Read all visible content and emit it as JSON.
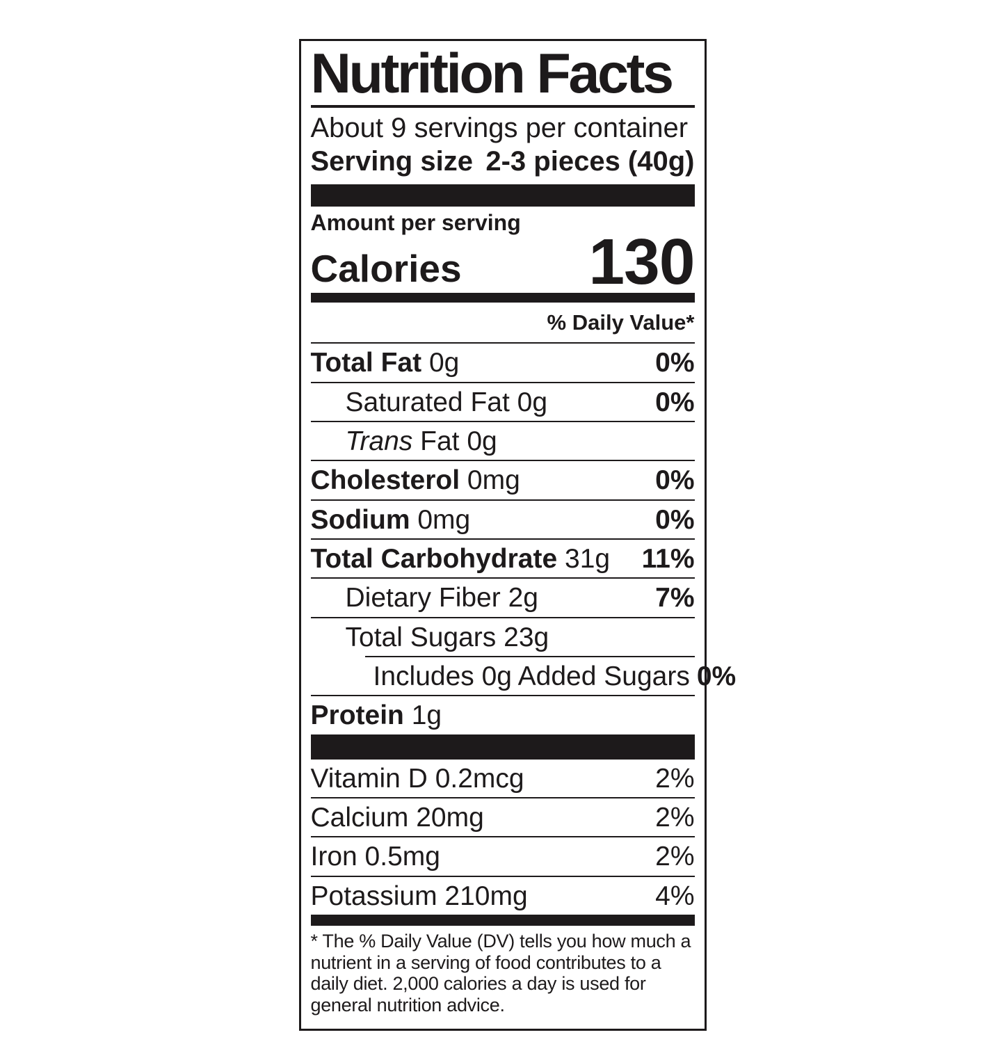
{
  "label": {
    "title": "Nutrition Facts",
    "servings_per_container": "About 9 servings per container",
    "serving_size_label": "Serving size",
    "serving_size_value": "2-3 pieces (40g)",
    "amount_per_serving": "Amount per serving",
    "calories_label": "Calories",
    "calories_value": "130",
    "daily_value_header": "% Daily Value*",
    "nutrients": [
      {
        "name": "Total Fat",
        "amount": "0g",
        "dv": "0%",
        "bold": true,
        "indent": 0
      },
      {
        "name": "Saturated Fat",
        "amount": "0g",
        "dv": "0%",
        "bold": false,
        "indent": 1
      },
      {
        "name_italic": "Trans",
        "name": "Fat",
        "amount": "0g",
        "dv": "",
        "bold": false,
        "indent": 1
      },
      {
        "name": "Cholesterol",
        "amount": "0mg",
        "dv": "0%",
        "bold": true,
        "indent": 0
      },
      {
        "name": "Sodium",
        "amount": "0mg",
        "dv": "0%",
        "bold": true,
        "indent": 0
      },
      {
        "name": "Total Carbohydrate",
        "amount": "31g",
        "dv": "11%",
        "bold": true,
        "indent": 0
      },
      {
        "name": "Dietary Fiber",
        "amount": "2g",
        "dv": "7%",
        "bold": false,
        "indent": 1
      },
      {
        "name": "Total Sugars",
        "amount": "23g",
        "dv": "",
        "bold": false,
        "indent": 1
      },
      {
        "name": "Includes 0g Added Sugars",
        "amount": "",
        "dv": "0%",
        "bold": false,
        "indent": 2,
        "partial_rule": true
      },
      {
        "name": "Protein",
        "amount": "1g",
        "dv": "",
        "bold": true,
        "indent": 0
      }
    ],
    "micronutrients": [
      {
        "name": "Vitamin D",
        "amount": "0.2mcg",
        "dv": "2%"
      },
      {
        "name": "Calcium",
        "amount": "20mg",
        "dv": "2%"
      },
      {
        "name": "Iron",
        "amount": "0.5mg",
        "dv": "2%"
      },
      {
        "name": "Potassium",
        "amount": "210mg",
        "dv": "4%"
      }
    ],
    "footnote": "* The % Daily Value (DV) tells you how much a nutrient in a serving of food contributes to a daily diet. 2,000 calories a day is used for general nutrition advice."
  },
  "colors": {
    "ink": "#1d1a1b",
    "background": "#ffffff"
  }
}
